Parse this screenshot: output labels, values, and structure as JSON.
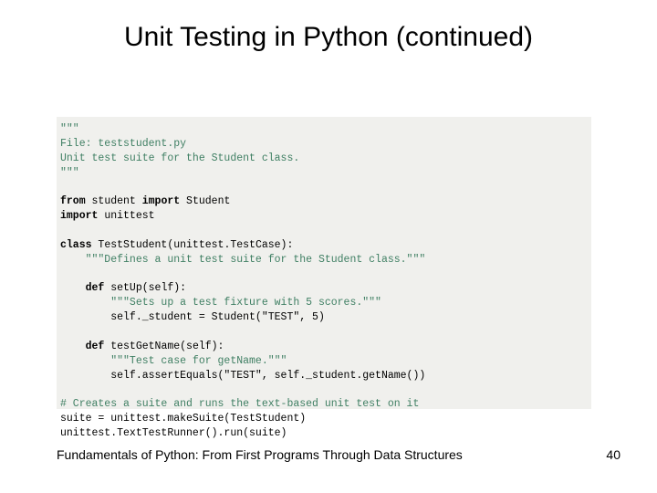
{
  "slide": {
    "title": "Unit Testing in Python (continued)",
    "footer_text": "Fundamentals of Python: From First Programs Through Data Structures",
    "page_number": "40",
    "background_color": "#ffffff",
    "title_fontsize": 30,
    "title_color": "#000000",
    "footer_fontsize": 14
  },
  "code": {
    "background_color": "#f0f0ed",
    "font_family": "Courier New",
    "font_size": 11.5,
    "text_color": "#000000",
    "docstring_color": "#3f7f63",
    "comment_color": "#3f7f63",
    "keyword_weight": "bold",
    "line01a": "\"\"\"",
    "line01b": "File: teststudent.py",
    "line01c": "Unit test suite for the Student class.",
    "line01d": "\"\"\"",
    "line03_kw1": "from",
    "line03_mid": " student ",
    "line03_kw2": "import",
    "line03_end": " Student",
    "line04_kw": "import",
    "line04_end": " unittest",
    "line06_kw": "class",
    "line06_rest": " TestStudent(unittest.TestCase):",
    "line07": "    \"\"\"Defines a unit test suite for the Student class.\"\"\"",
    "line09_indent": "    ",
    "line09_kw": "def",
    "line09_rest": " setUp(self):",
    "line10": "        \"\"\"Sets up a test fixture with 5 scores.\"\"\"",
    "line11": "        self._student = Student(\"TEST\", 5)",
    "line13_indent": "    ",
    "line13_kw": "def",
    "line13_rest": " testGetName(self):",
    "line14": "        \"\"\"Test case for getName.\"\"\"",
    "line15": "        self.assertEquals(\"TEST\", self._student.getName())",
    "line17": "# Creates a suite and runs the text-based unit test on it",
    "line18": "suite = unittest.makeSuite(TestStudent)",
    "line19": "unittest.TextTestRunner().run(suite)"
  }
}
